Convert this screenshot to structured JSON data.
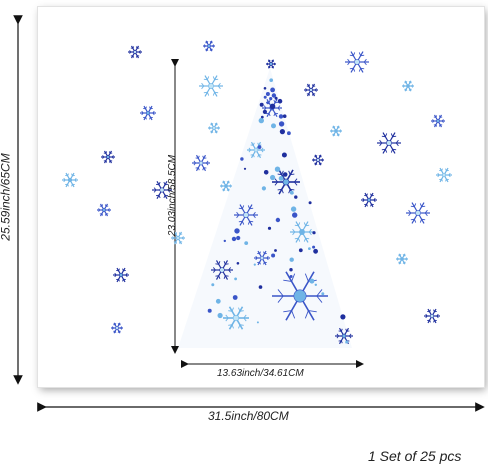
{
  "dimensions": {
    "height_total": "25.59inch/65CM",
    "height_tree": "23.03inch/58.5CM",
    "width_tree": "13.63inch/34.61CM",
    "width_total": "31.5inch/80CM"
  },
  "caption": "1 Set of 25 pcs",
  "colors": {
    "deep_blue": "#1f2f9e",
    "mid_blue": "#3a55c8",
    "light_blue": "#6fb4e6",
    "ice": "#bfe3f6"
  },
  "icons": [
    "snowflake-icon",
    "christmas-tree-graphic"
  ]
}
